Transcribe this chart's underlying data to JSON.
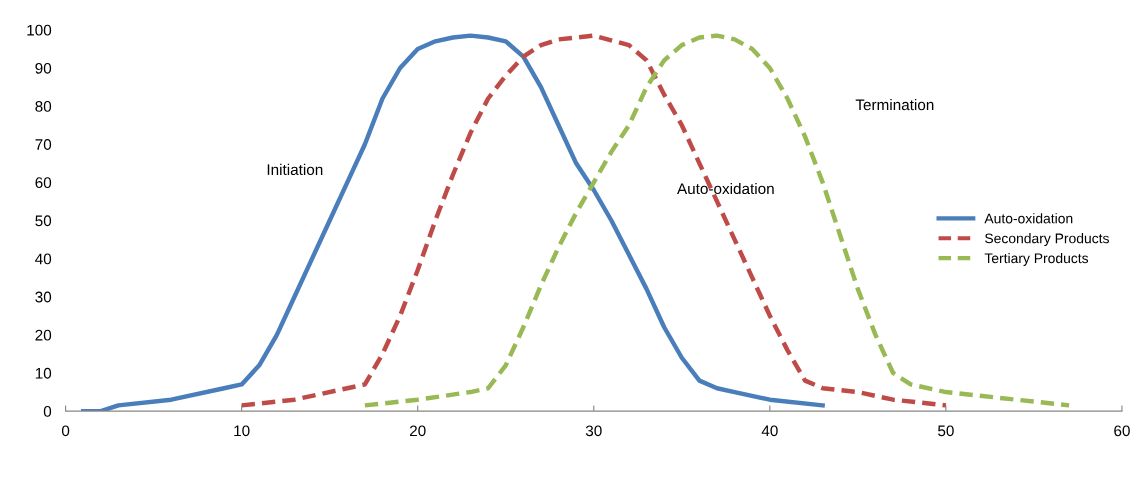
{
  "chart_data": {
    "type": "line",
    "xlim": [
      0,
      60
    ],
    "xticks": [
      0,
      10,
      20,
      30,
      40,
      50,
      60
    ],
    "ylim": [
      0,
      100
    ],
    "yticks": [
      0,
      10,
      20,
      30,
      40,
      50,
      60,
      70,
      80,
      90,
      100
    ],
    "grid": false,
    "legend": "right",
    "marker": "none",
    "series": [
      {
        "name": "Auto-oxidation",
        "color": "#4a7ebb",
        "line_style": "solid",
        "x": [
          1,
          2,
          3,
          6,
          9,
          10,
          11,
          12,
          13,
          14,
          15,
          16,
          17,
          18,
          19,
          20,
          21,
          22,
          23,
          24,
          25,
          26,
          27,
          28,
          29,
          30,
          31,
          32,
          33,
          34,
          35,
          36,
          37,
          38,
          40,
          43
        ],
        "values": [
          0,
          0,
          1.5,
          3,
          6,
          7,
          12,
          20,
          30,
          40,
          50,
          60,
          70,
          82,
          90,
          95,
          97,
          98,
          98.5,
          98,
          97,
          93,
          85,
          75,
          65,
          58,
          50,
          41,
          32,
          22,
          14,
          8,
          6,
          5,
          3,
          1.5
        ]
      },
      {
        "name": "Secondary Products",
        "color": "#be4b48",
        "line_style": "dashed",
        "x": [
          10,
          13,
          16,
          17,
          18,
          19,
          20,
          21,
          22,
          23,
          24,
          25,
          26,
          27,
          28,
          30,
          32,
          33,
          34,
          35,
          36,
          37,
          38,
          39,
          40,
          41,
          42,
          43,
          45,
          47,
          50
        ],
        "values": [
          1.5,
          3,
          6,
          7,
          15,
          25,
          37,
          50,
          62,
          73,
          82,
          88,
          93,
          96,
          97.5,
          98.5,
          96,
          92,
          83,
          75,
          65,
          55,
          45,
          35,
          25,
          16,
          8,
          6,
          5,
          3,
          1.5
        ]
      },
      {
        "name": "Tertiary Products",
        "color": "#98b954",
        "line_style": "dashed",
        "x": [
          17,
          20,
          23,
          24,
          25,
          26,
          27,
          28,
          29,
          30,
          31,
          32,
          33,
          34,
          35,
          36,
          37,
          38,
          39,
          40,
          41,
          42,
          43,
          44,
          45,
          46,
          47,
          48,
          50,
          54,
          57
        ],
        "values": [
          1.5,
          3,
          5,
          6,
          12,
          22,
          33,
          43,
          52,
          60,
          68,
          75,
          85,
          92,
          96,
          98,
          98.5,
          97.5,
          95,
          90,
          82,
          72,
          60,
          46,
          32,
          20,
          10,
          7,
          5,
          3,
          1.5
        ]
      }
    ],
    "annotations": [
      "Initiation",
      "Auto-oxidation",
      "Termination"
    ]
  }
}
